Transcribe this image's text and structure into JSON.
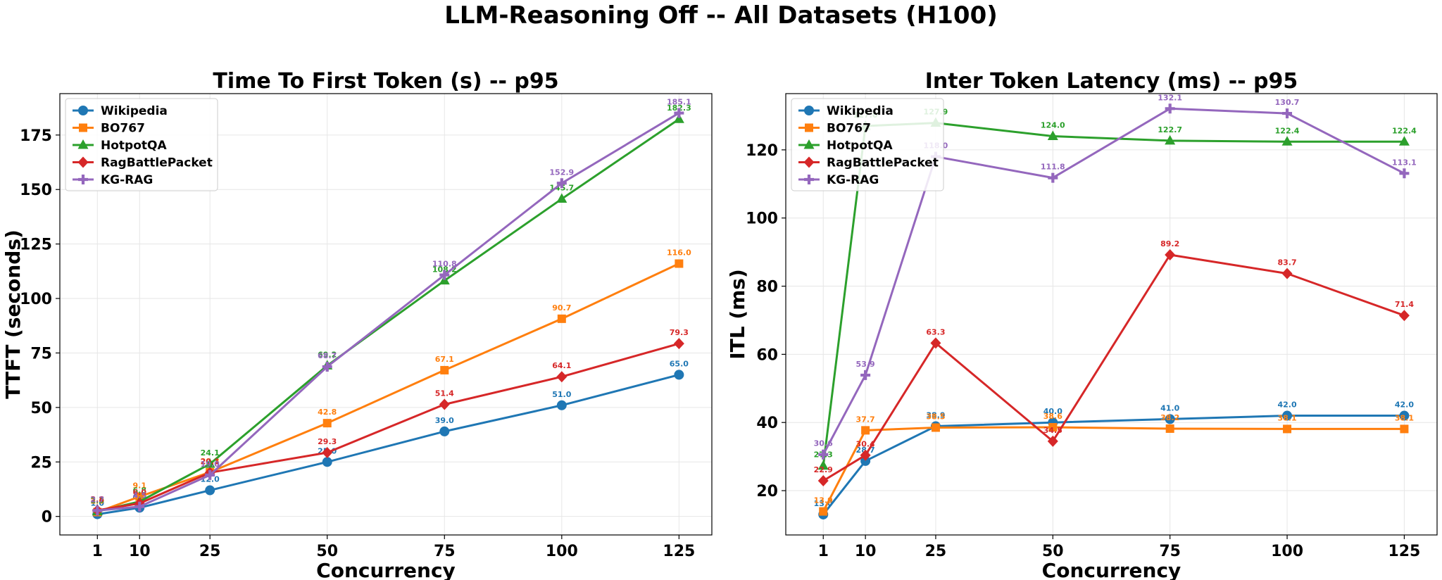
{
  "title": "LLM-Reasoning Off -- All Datasets (H100)",
  "colors": {
    "Wikipedia": "#1f77b4",
    "BO767": "#ff7f0e",
    "HotpotQA": "#2ca02c",
    "RagBattlePacket": "#d62728",
    "KG-RAG": "#9467bd"
  },
  "markers": {
    "Wikipedia": "circle",
    "BO767": "square",
    "HotpotQA": "triangle",
    "RagBattlePacket": "diamond",
    "KG-RAG": "plus"
  },
  "chart_data": [
    {
      "type": "line",
      "title": "Time To First Token (s) -- p95",
      "xlabel": "Concurrency",
      "ylabel": "TTFT (seconds)",
      "x": [
        1,
        10,
        25,
        50,
        75,
        100,
        125
      ],
      "xticks": [
        1,
        10,
        25,
        50,
        75,
        100,
        125
      ],
      "yticks": [
        0,
        25,
        50,
        75,
        100,
        125,
        150,
        175
      ],
      "xlim": [
        -7,
        132
      ],
      "ylim": [
        -8.5,
        194
      ],
      "grid": true,
      "legend": "top-left",
      "series": [
        {
          "name": "Wikipedia",
          "values": [
            1.0,
            4.0,
            12.0,
            25.0,
            39.0,
            51.0,
            65.0
          ],
          "labels": [
            "1.0",
            "4.0",
            "12.0",
            "25.0",
            "39.0",
            "51.0",
            "65.0"
          ]
        },
        {
          "name": "BO767",
          "values": [
            2.0,
            9.1,
            20.3,
            42.8,
            67.1,
            90.7,
            116.0
          ],
          "labels": [
            "2.0",
            "9.1",
            "20.3",
            "42.8",
            "67.1",
            "90.7",
            "116.0"
          ]
        },
        {
          "name": "HotpotQA",
          "values": [
            2.3,
            6.8,
            24.1,
            69.2,
            108.2,
            145.7,
            182.3
          ],
          "labels": [
            "2.3",
            "6.8",
            "24.1",
            "69.2",
            "108.2",
            "145.7",
            "182.3"
          ]
        },
        {
          "name": "RagBattlePacket",
          "values": [
            2.8,
            6.0,
            20.1,
            29.3,
            51.4,
            64.1,
            79.3
          ],
          "labels": [
            "2.8",
            "6.0",
            "20.1",
            "29.3",
            "51.4",
            "64.1",
            "79.3"
          ]
        },
        {
          "name": "KG-RAG",
          "values": [
            2.7,
            4.5,
            19.0,
            68.7,
            110.8,
            152.9,
            185.1
          ],
          "labels": [
            "2.7",
            "4.5",
            "19.0",
            "68.7",
            "110.8",
            "152.9",
            "185.1"
          ]
        }
      ]
    },
    {
      "type": "line",
      "title": "Inter Token Latency (ms) -- p95",
      "xlabel": "Concurrency",
      "ylabel": "ITL (ms)",
      "x": [
        1,
        10,
        25,
        50,
        75,
        100,
        125
      ],
      "xticks": [
        1,
        10,
        25,
        50,
        75,
        100,
        125
      ],
      "yticks": [
        20,
        40,
        60,
        80,
        100,
        120
      ],
      "xlim": [
        -7,
        132
      ],
      "ylim": [
        7,
        136.5
      ],
      "grid": true,
      "legend": "top-left",
      "series": [
        {
          "name": "Wikipedia",
          "values": [
            13.0,
            28.7,
            38.9,
            40.0,
            41.0,
            42.0,
            42.0
          ],
          "labels": [
            "13.0",
            "28.7",
            "38.9",
            "40.0",
            "41.0",
            "42.0",
            "42.0"
          ]
        },
        {
          "name": "BO767",
          "values": [
            13.9,
            37.7,
            38.5,
            38.6,
            38.2,
            38.1,
            38.1
          ],
          "labels": [
            "13.9",
            "37.7",
            "38.5",
            "38.6",
            "38.2",
            "38.1",
            "38.1"
          ]
        },
        {
          "name": "HotpotQA",
          "values": [
            27.3,
            127.0,
            127.9,
            124.0,
            122.7,
            122.4,
            122.4
          ],
          "labels": [
            "27.3",
            "127.0",
            "127.9",
            "124.0",
            "122.7",
            "122.4",
            "122.4"
          ]
        },
        {
          "name": "RagBattlePacket",
          "values": [
            22.9,
            30.4,
            63.3,
            34.5,
            89.2,
            83.7,
            71.4
          ],
          "labels": [
            "22.9",
            "30.4",
            "63.3",
            "34.5",
            "89.2",
            "83.7",
            "71.4"
          ]
        },
        {
          "name": "KG-RAG",
          "values": [
            30.6,
            53.9,
            118.0,
            111.8,
            132.1,
            130.7,
            113.1
          ],
          "labels": [
            "30.6",
            "53.9",
            "118.0",
            "111.8",
            "132.1",
            "130.7",
            "113.1"
          ]
        }
      ]
    }
  ]
}
